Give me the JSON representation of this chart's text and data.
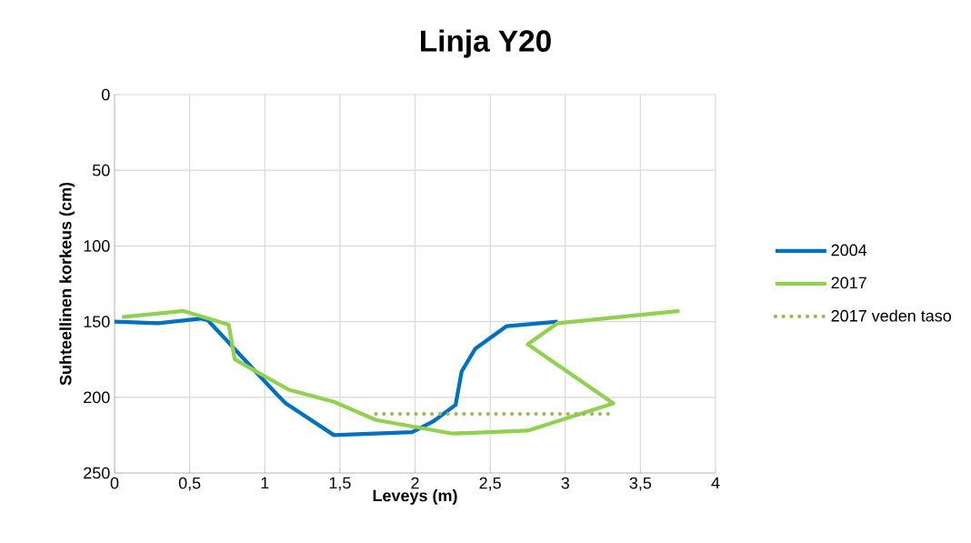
{
  "chart_data": {
    "type": "line",
    "title": "Linja Y20",
    "xlabel": "Leveys (m)",
    "ylabel": "Suhteellinen korkeus (cm)",
    "xlim": [
      0,
      4
    ],
    "xticks": [
      0,
      {
        "value": 0.5,
        "label": "0,5"
      },
      1,
      {
        "value": 1.5,
        "label": "1,5"
      },
      2,
      {
        "value": 2.5,
        "label": "2,5"
      },
      3,
      {
        "value": 3.5,
        "label": "3,5"
      },
      4
    ],
    "ylim": [
      250,
      0
    ],
    "yticks": [
      0,
      50,
      100,
      150,
      200,
      250
    ],
    "grid": true,
    "legend": "right",
    "marker": "none",
    "series": [
      {
        "name": "2004",
        "color": "#0070c0",
        "line_style": "solid",
        "x": [
          0,
          0.29,
          0.57,
          0.62,
          1.08,
          1.14,
          1.46,
          1.98,
          2.12,
          2.27,
          2.31,
          2.4,
          2.61,
          2.95
        ],
        "values": [
          150,
          151,
          148,
          149,
          198,
          204,
          225,
          223,
          216,
          205,
          183,
          168,
          153,
          150
        ]
      },
      {
        "name": "2017",
        "color": "#92d050",
        "line_style": "solid",
        "x": [
          0.05,
          0.46,
          0.76,
          0.8,
          1.16,
          1.46,
          1.74,
          2.25,
          2.75,
          3.32,
          2.75,
          2.95,
          3.76
        ],
        "values": [
          147,
          143,
          152,
          175,
          195,
          203,
          215,
          224,
          222,
          204,
          165,
          151,
          143
        ]
      },
      {
        "name": "2017 veden taso",
        "color": "#9bbb59",
        "line_style": "dotted",
        "x": [
          1.74,
          3.32
        ],
        "values": [
          211,
          211
        ]
      }
    ]
  }
}
